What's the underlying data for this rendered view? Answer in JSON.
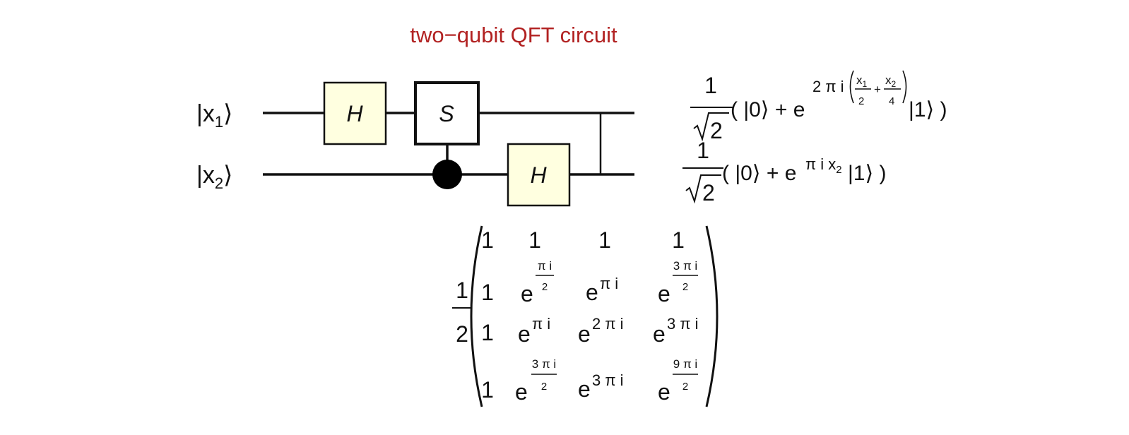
{
  "title": "two−qubit QFT circuit",
  "colors": {
    "title": "#b22222",
    "gate_fill": "#ffffe0",
    "wire": "#111111"
  },
  "inputs": {
    "q1": {
      "open": "|x",
      "sub": "1",
      "close": "⟩"
    },
    "q2": {
      "open": "|x",
      "sub": "2",
      "close": "⟩"
    }
  },
  "gates": {
    "h1": "H",
    "s": "S",
    "h2": "H"
  },
  "outputs": {
    "q1": {
      "coef_num": "1",
      "coef_den": "2",
      "open": "( |0⟩ + e",
      "exp_prefix": "2 π i",
      "frac1_num": "x",
      "frac1_num_sub": "1",
      "frac1_den": "2",
      "plus": "+",
      "frac2_num": "x",
      "frac2_num_sub": "2",
      "frac2_den": "4",
      "close": "|1⟩ )"
    },
    "q2": {
      "coef_num": "1",
      "coef_den": "2",
      "open": "( |0⟩ + e",
      "exp": "π i x",
      "exp_sub": "2",
      "close": "|1⟩ )"
    }
  },
  "matrix": {
    "coef_num": "1",
    "coef_den": "2",
    "rows": [
      {
        "c0": "1",
        "c1": "1",
        "c2": "1",
        "c3": "1"
      },
      {
        "c0": "1",
        "c1_base": "e",
        "c1_exp_num": "π i",
        "c1_exp_den": "2",
        "c2_base": "e",
        "c2_exp": "π i",
        "c3_base": "e",
        "c3_exp_num": "3 π i",
        "c3_exp_den": "2"
      },
      {
        "c0": "1",
        "c1_base": "e",
        "c1_exp": "π i",
        "c2_base": "e",
        "c2_exp": "2 π i",
        "c3_base": "e",
        "c3_exp": "3 π i"
      },
      {
        "c0": "1",
        "c1_base": "e",
        "c1_exp_num": "3 π i",
        "c1_exp_den": "2",
        "c2_base": "e",
        "c2_exp": "3 π i",
        "c3_base": "e",
        "c3_exp_num": "9 π i",
        "c3_exp_den": "2"
      }
    ]
  }
}
